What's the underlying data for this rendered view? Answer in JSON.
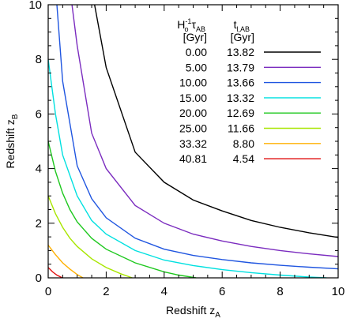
{
  "chart_data": {
    "type": "line",
    "xlabel": "Redshift z",
    "xlabel_sub": "A",
    "ylabel": "Redshift z",
    "ylabel_sub": "B",
    "xlim": [
      0,
      10
    ],
    "ylim": [
      0,
      10
    ],
    "xticks": [
      "0",
      "2",
      "4",
      "6",
      "8",
      "10"
    ],
    "yticks": [
      "0",
      "2",
      "4",
      "6",
      "8",
      "10"
    ],
    "grid": false,
    "legend_position": "top-right",
    "legend_headers": {
      "col1_line1": "H",
      "col1_sub": "o",
      "col1_sup": "-1",
      "col1_tau": "τ",
      "col1_tau_sub": "AB",
      "col1_line2": "[Gyr]",
      "col2_line1": "t",
      "col2_sub": "l,AB",
      "col2_line2": "[Gyr]"
    },
    "series": [
      {
        "name": "0.00",
        "t": "13.82",
        "color": "#000000",
        "points": [
          [
            1.6,
            10
          ],
          [
            2,
            7.7
          ],
          [
            3,
            4.6
          ],
          [
            4,
            3.5
          ],
          [
            5,
            2.85
          ],
          [
            6,
            2.45
          ],
          [
            7,
            2.1
          ],
          [
            8,
            1.85
          ],
          [
            9,
            1.65
          ],
          [
            10,
            1.48
          ]
        ]
      },
      {
        "name": "5.00",
        "t": "13.79",
        "color": "#7b2cbf",
        "points": [
          [
            0.82,
            10
          ],
          [
            1,
            8.5
          ],
          [
            1.5,
            5.3
          ],
          [
            2,
            4.0
          ],
          [
            3,
            2.65
          ],
          [
            4,
            2.0
          ],
          [
            5,
            1.6
          ],
          [
            6,
            1.35
          ],
          [
            7,
            1.15
          ],
          [
            8,
            1.0
          ],
          [
            9,
            0.88
          ],
          [
            10,
            0.78
          ]
        ]
      },
      {
        "name": "10.00",
        "t": "13.66",
        "color": "#1f55e0",
        "points": [
          [
            0.3,
            10
          ],
          [
            0.5,
            7.2
          ],
          [
            1,
            4.1
          ],
          [
            1.5,
            2.9
          ],
          [
            2,
            2.2
          ],
          [
            3,
            1.45
          ],
          [
            4,
            1.05
          ],
          [
            5,
            0.82
          ],
          [
            6,
            0.67
          ],
          [
            7,
            0.55
          ],
          [
            8,
            0.46
          ],
          [
            9,
            0.39
          ],
          [
            10,
            0.33
          ]
        ]
      },
      {
        "name": "15.00",
        "t": "13.32",
        "color": "#00e0e0",
        "points": [
          [
            0,
            8.0
          ],
          [
            0.25,
            6.0
          ],
          [
            0.5,
            4.5
          ],
          [
            1,
            3.0
          ],
          [
            1.5,
            2.1
          ],
          [
            2,
            1.6
          ],
          [
            3,
            1.0
          ],
          [
            4,
            0.65
          ],
          [
            5,
            0.45
          ],
          [
            6,
            0.3
          ],
          [
            7,
            0.19
          ],
          [
            8,
            0.1
          ],
          [
            9,
            0.03
          ],
          [
            9.6,
            0
          ]
        ]
      },
      {
        "name": "20.00",
        "t": "12.69",
        "color": "#1ec81e",
        "points": [
          [
            0,
            5.0
          ],
          [
            0.25,
            3.9
          ],
          [
            0.5,
            3.1
          ],
          [
            0.75,
            2.5
          ],
          [
            1,
            2.05
          ],
          [
            1.5,
            1.45
          ],
          [
            2,
            1.05
          ],
          [
            3,
            0.55
          ],
          [
            4,
            0.22
          ],
          [
            4.5,
            0.1
          ],
          [
            5.1,
            0
          ]
        ]
      },
      {
        "name": "25.00",
        "t": "11.66",
        "color": "#a8e600",
        "points": [
          [
            0,
            3.0
          ],
          [
            0.25,
            2.35
          ],
          [
            0.5,
            1.85
          ],
          [
            0.75,
            1.45
          ],
          [
            1,
            1.15
          ],
          [
            1.5,
            0.7
          ],
          [
            2,
            0.38
          ],
          [
            2.5,
            0.15
          ],
          [
            2.9,
            0
          ]
        ]
      },
      {
        "name": "33.32",
        "t": "8.80",
        "color": "#ffb000",
        "points": [
          [
            0,
            1.2
          ],
          [
            0.25,
            0.85
          ],
          [
            0.5,
            0.55
          ],
          [
            0.75,
            0.32
          ],
          [
            1,
            0.12
          ],
          [
            1.2,
            0
          ]
        ]
      },
      {
        "name": "40.81",
        "t": "4.54",
        "color": "#e01010",
        "points": [
          [
            0,
            0.38
          ],
          [
            0.15,
            0.22
          ],
          [
            0.3,
            0.1
          ],
          [
            0.45,
            0.02
          ],
          [
            0.5,
            0
          ]
        ]
      }
    ]
  }
}
